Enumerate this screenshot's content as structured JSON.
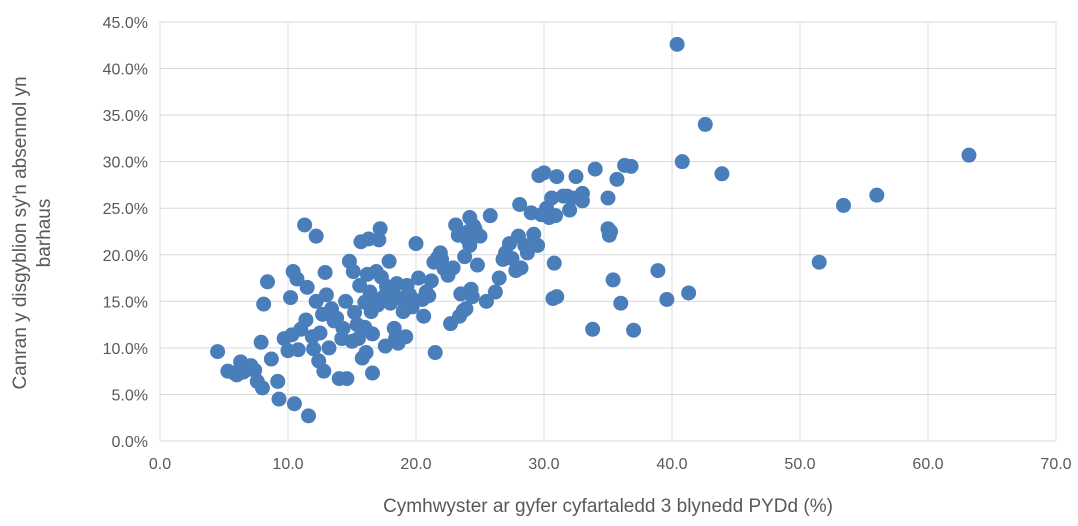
{
  "chart_data": {
    "type": "scatter",
    "title": "",
    "xlabel": "Cymhwyster ar gyfer cyfartaledd 3 blynedd PYDd (%)",
    "ylabel_lines": [
      "Canran y disgyblion sy'n absennol yn",
      "barhaus"
    ],
    "xlim": [
      0,
      70
    ],
    "ylim": [
      0,
      45
    ],
    "x_ticks": [
      "0.0",
      "10.0",
      "20.0",
      "30.0",
      "40.0",
      "50.0",
      "60.0",
      "70.0"
    ],
    "y_ticks": [
      "0.0%",
      "5.0%",
      "10.0%",
      "15.0%",
      "20.0%",
      "25.0%",
      "30.0%",
      "35.0%",
      "40.0%",
      "45.0%"
    ],
    "grid": true,
    "marker_color": "#4a7ebb",
    "points": [
      [
        4.5,
        9.6
      ],
      [
        5.3,
        7.5
      ],
      [
        5.8,
        7.3
      ],
      [
        6.0,
        7.1
      ],
      [
        6.3,
        8.5
      ],
      [
        6.5,
        7.4
      ],
      [
        6.9,
        7.7
      ],
      [
        7.1,
        8.1
      ],
      [
        7.4,
        7.6
      ],
      [
        7.6,
        6.4
      ],
      [
        7.9,
        10.6
      ],
      [
        8.0,
        5.7
      ],
      [
        8.1,
        14.7
      ],
      [
        8.4,
        17.1
      ],
      [
        8.7,
        8.8
      ],
      [
        9.2,
        6.4
      ],
      [
        9.3,
        4.5
      ],
      [
        9.7,
        11.0
      ],
      [
        10.0,
        9.7
      ],
      [
        10.2,
        15.4
      ],
      [
        10.3,
        11.4
      ],
      [
        10.4,
        18.2
      ],
      [
        10.5,
        4.0
      ],
      [
        10.7,
        17.4
      ],
      [
        10.8,
        9.8
      ],
      [
        11.0,
        12.0
      ],
      [
        11.3,
        23.2
      ],
      [
        11.5,
        16.5
      ],
      [
        11.4,
        13.0
      ],
      [
        11.6,
        2.7
      ],
      [
        11.9,
        11.2
      ],
      [
        12.0,
        9.9
      ],
      [
        12.2,
        15.0
      ],
      [
        12.2,
        22.0
      ],
      [
        12.4,
        8.6
      ],
      [
        12.5,
        11.6
      ],
      [
        12.7,
        13.6
      ],
      [
        12.8,
        7.5
      ],
      [
        12.9,
        18.1
      ],
      [
        13.0,
        15.7
      ],
      [
        13.2,
        10.0
      ],
      [
        13.4,
        14.2
      ],
      [
        13.6,
        12.9
      ],
      [
        13.8,
        13.2
      ],
      [
        14.0,
        6.7
      ],
      [
        14.2,
        11.0
      ],
      [
        14.3,
        12.1
      ],
      [
        14.5,
        15.0
      ],
      [
        14.6,
        6.7
      ],
      [
        14.8,
        19.3
      ],
      [
        15.0,
        10.7
      ],
      [
        15.1,
        18.2
      ],
      [
        15.2,
        13.8
      ],
      [
        15.4,
        12.5
      ],
      [
        15.5,
        11.0
      ],
      [
        15.6,
        16.7
      ],
      [
        15.7,
        21.4
      ],
      [
        15.8,
        8.9
      ],
      [
        16.0,
        14.9
      ],
      [
        16.0,
        12.2
      ],
      [
        16.1,
        9.5
      ],
      [
        16.2,
        17.9
      ],
      [
        16.3,
        21.7
      ],
      [
        16.4,
        16.0
      ],
      [
        16.5,
        13.9
      ],
      [
        16.6,
        11.5
      ],
      [
        16.6,
        7.3
      ],
      [
        16.8,
        15.2
      ],
      [
        16.9,
        18.2
      ],
      [
        17.0,
        14.6
      ],
      [
        17.1,
        21.6
      ],
      [
        17.2,
        22.8
      ],
      [
        17.3,
        17.6
      ],
      [
        17.5,
        15.5
      ],
      [
        17.6,
        10.2
      ],
      [
        17.7,
        16.6
      ],
      [
        17.9,
        19.3
      ],
      [
        18.0,
        14.8
      ],
      [
        18.2,
        16.3
      ],
      [
        18.3,
        12.1
      ],
      [
        18.4,
        11.0
      ],
      [
        18.5,
        16.9
      ],
      [
        18.6,
        10.5
      ],
      [
        18.8,
        15.3
      ],
      [
        19.0,
        13.9
      ],
      [
        19.2,
        11.2
      ],
      [
        19.3,
        16.7
      ],
      [
        19.5,
        15.7
      ],
      [
        19.7,
        14.4
      ],
      [
        20.0,
        21.2
      ],
      [
        20.2,
        17.5
      ],
      [
        20.5,
        15.2
      ],
      [
        20.6,
        13.4
      ],
      [
        20.8,
        16.0
      ],
      [
        21.0,
        15.6
      ],
      [
        21.2,
        17.2
      ],
      [
        21.4,
        19.2
      ],
      [
        21.5,
        9.5
      ],
      [
        21.7,
        19.7
      ],
      [
        21.9,
        20.2
      ],
      [
        22.0,
        19.5
      ],
      [
        22.2,
        18.5
      ],
      [
        22.5,
        17.8
      ],
      [
        22.7,
        12.6
      ],
      [
        22.9,
        18.6
      ],
      [
        23.1,
        23.2
      ],
      [
        23.3,
        22.1
      ],
      [
        23.4,
        13.4
      ],
      [
        23.5,
        15.8
      ],
      [
        23.7,
        14.0
      ],
      [
        23.8,
        19.8
      ],
      [
        23.9,
        14.2
      ],
      [
        24.0,
        21.7
      ],
      [
        24.1,
        22.5
      ],
      [
        24.2,
        21.0
      ],
      [
        24.2,
        24.0
      ],
      [
        24.3,
        16.3
      ],
      [
        24.4,
        15.5
      ],
      [
        24.5,
        23.1
      ],
      [
        24.6,
        22.8
      ],
      [
        24.8,
        18.9
      ],
      [
        25.0,
        22.0
      ],
      [
        25.5,
        15.0
      ],
      [
        25.8,
        24.2
      ],
      [
        26.2,
        16.0
      ],
      [
        26.5,
        17.5
      ],
      [
        26.8,
        19.5
      ],
      [
        27.0,
        20.2
      ],
      [
        27.3,
        21.2
      ],
      [
        27.5,
        19.6
      ],
      [
        27.8,
        18.3
      ],
      [
        28.0,
        22.0
      ],
      [
        28.1,
        25.4
      ],
      [
        28.2,
        18.6
      ],
      [
        28.5,
        21.0
      ],
      [
        28.7,
        20.2
      ],
      [
        29.0,
        24.5
      ],
      [
        29.2,
        22.2
      ],
      [
        29.5,
        21.0
      ],
      [
        29.6,
        28.5
      ],
      [
        29.8,
        24.3
      ],
      [
        30.0,
        28.8
      ],
      [
        30.2,
        25.0
      ],
      [
        30.4,
        24.0
      ],
      [
        30.6,
        26.1
      ],
      [
        30.7,
        15.3
      ],
      [
        30.8,
        19.1
      ],
      [
        30.9,
        24.2
      ],
      [
        31.0,
        28.4
      ],
      [
        31.0,
        15.5
      ],
      [
        31.5,
        26.3
      ],
      [
        31.8,
        26.3
      ],
      [
        32.0,
        24.8
      ],
      [
        32.2,
        26.1
      ],
      [
        32.5,
        28.4
      ],
      [
        33.0,
        25.8
      ],
      [
        33.0,
        26.6
      ],
      [
        33.8,
        12.0
      ],
      [
        34.0,
        29.2
      ],
      [
        35.0,
        22.8
      ],
      [
        35.0,
        26.1
      ],
      [
        35.1,
        22.1
      ],
      [
        35.2,
        22.5
      ],
      [
        35.4,
        17.3
      ],
      [
        35.7,
        28.1
      ],
      [
        36.0,
        14.8
      ],
      [
        36.3,
        29.6
      ],
      [
        36.8,
        29.5
      ],
      [
        37.0,
        11.9
      ],
      [
        38.9,
        18.3
      ],
      [
        39.6,
        15.2
      ],
      [
        40.4,
        42.6
      ],
      [
        40.8,
        30.0
      ],
      [
        41.3,
        15.9
      ],
      [
        42.6,
        34.0
      ],
      [
        43.9,
        28.7
      ],
      [
        51.5,
        19.2
      ],
      [
        53.4,
        25.3
      ],
      [
        56.0,
        26.4
      ],
      [
        63.2,
        30.7
      ]
    ]
  }
}
